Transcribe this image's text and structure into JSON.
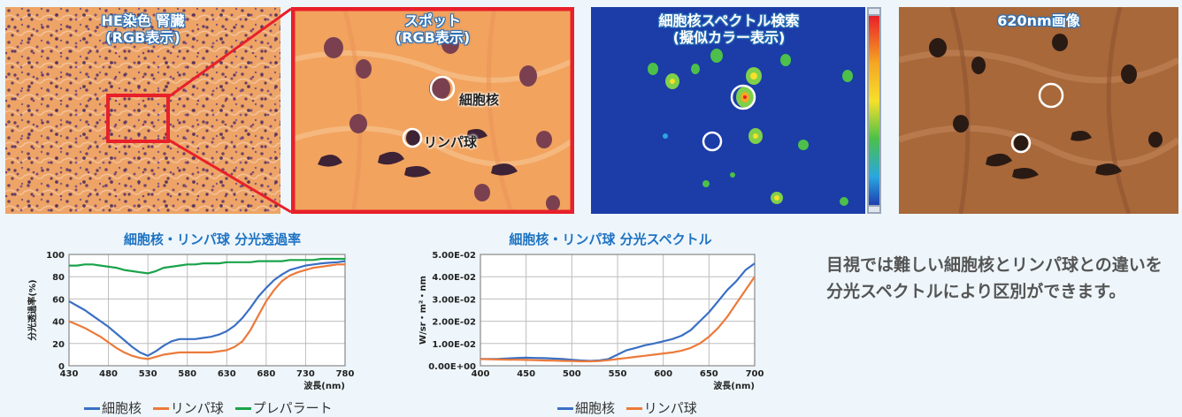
{
  "panels": [
    {
      "title_line1": "HE染色 腎臓",
      "title_line2": "(RGB表示)"
    },
    {
      "title_line1": "スポット",
      "title_line2": "(RGB表示)",
      "annotations": [
        "細胞核",
        "リンパ球"
      ]
    },
    {
      "title_line1": "細胞核スペクトル検索",
      "title_line2": "(擬似カラー表示)"
    },
    {
      "title_line1": "620nm画像",
      "title_line2": ""
    }
  ],
  "description": "目視では難しい細胞核とリンパ球との違いを分光スペクトルにより区別ができます。",
  "colors": {
    "nucleus": "#3a6fc4",
    "lymph": "#ec7a3a",
    "prep": "#1aa34a",
    "accent_red": "#e8202a",
    "title_blue": "#1f73c2"
  },
  "chart_data": [
    {
      "type": "line",
      "title": "細胞核・リンパ球 分光透過率",
      "xlabel": "波長(nm)",
      "ylabel": "分光透過率(%)",
      "xlim": [
        430,
        780
      ],
      "ylim": [
        0,
        100
      ],
      "xticks": [
        430,
        480,
        530,
        580,
        630,
        680,
        730,
        780
      ],
      "yticks": [
        0,
        20,
        40,
        60,
        80,
        100
      ],
      "grid": true,
      "legend_position": "bottom",
      "series": [
        {
          "name": "細胞核",
          "color": "#3a6fc4",
          "x": [
            430,
            440,
            450,
            460,
            470,
            480,
            490,
            500,
            510,
            520,
            530,
            540,
            550,
            560,
            570,
            580,
            590,
            600,
            610,
            620,
            630,
            640,
            650,
            660,
            670,
            680,
            690,
            700,
            710,
            720,
            730,
            740,
            750,
            760,
            770,
            780
          ],
          "y": [
            58,
            54,
            50,
            45,
            40,
            35,
            29,
            23,
            17,
            12,
            9,
            13,
            18,
            22,
            24,
            24,
            24,
            25,
            26,
            28,
            31,
            36,
            43,
            52,
            62,
            70,
            77,
            82,
            86,
            88,
            90,
            91,
            92,
            92.5,
            93,
            94
          ]
        },
        {
          "name": "リンパ球",
          "color": "#ec7a3a",
          "x": [
            430,
            440,
            450,
            460,
            470,
            480,
            490,
            500,
            510,
            520,
            530,
            540,
            550,
            560,
            570,
            580,
            590,
            600,
            610,
            620,
            630,
            640,
            650,
            660,
            670,
            680,
            690,
            700,
            710,
            720,
            730,
            740,
            750,
            760,
            770,
            780
          ],
          "y": [
            40,
            37,
            34,
            30,
            26,
            21,
            16,
            12,
            9,
            7,
            6,
            8,
            10,
            11,
            12,
            12,
            12,
            12,
            12,
            13,
            14,
            17,
            22,
            32,
            45,
            58,
            68,
            76,
            81,
            84,
            86,
            88,
            89,
            90,
            91,
            91
          ]
        },
        {
          "name": "プレパラート",
          "color": "#1aa34a",
          "x": [
            430,
            440,
            450,
            460,
            470,
            480,
            490,
            500,
            510,
            520,
            530,
            540,
            550,
            560,
            570,
            580,
            590,
            600,
            610,
            620,
            630,
            640,
            650,
            660,
            670,
            680,
            690,
            700,
            710,
            720,
            730,
            740,
            750,
            760,
            770,
            780
          ],
          "y": [
            90,
            90,
            91,
            91,
            90,
            89,
            88,
            86,
            85,
            84,
            83,
            85,
            88,
            89,
            90,
            91,
            91,
            92,
            92,
            92,
            93,
            93,
            93,
            93,
            94,
            94,
            94,
            94,
            95,
            95,
            95,
            95,
            96,
            96,
            96,
            96
          ]
        }
      ]
    },
    {
      "type": "line",
      "title": "細胞核・リンパ球 分光スペクトル",
      "xlabel": "波長(nm)",
      "ylabel": "W/sr・m²・nm",
      "xlim": [
        400,
        700
      ],
      "ylim": [
        0,
        0.05
      ],
      "xticks": [
        400,
        450,
        500,
        550,
        600,
        650,
        700
      ],
      "yticks": [
        0,
        0.01,
        0.02,
        0.03,
        0.04,
        0.05
      ],
      "ytick_labels": [
        "0.00E+00",
        "1.00E-02",
        "2.00E-02",
        "3.00E-02",
        "4.00E-02",
        "5.00E-02"
      ],
      "grid": true,
      "legend_position": "bottom",
      "series": [
        {
          "name": "細胞核",
          "color": "#3a6fc4",
          "x": [
            400,
            410,
            420,
            430,
            440,
            450,
            460,
            470,
            480,
            490,
            500,
            510,
            520,
            530,
            540,
            550,
            560,
            570,
            580,
            590,
            600,
            610,
            620,
            630,
            640,
            650,
            660,
            670,
            680,
            690,
            700
          ],
          "y": [
            0.003,
            0.003,
            0.0031,
            0.0033,
            0.0035,
            0.0036,
            0.0035,
            0.0034,
            0.0032,
            0.003,
            0.0027,
            0.0024,
            0.0022,
            0.0024,
            0.003,
            0.005,
            0.007,
            0.008,
            0.0092,
            0.01,
            0.011,
            0.012,
            0.0135,
            0.016,
            0.02,
            0.024,
            0.029,
            0.034,
            0.038,
            0.043,
            0.046
          ]
        },
        {
          "name": "リンパ球",
          "color": "#ec7a3a",
          "x": [
            400,
            410,
            420,
            430,
            440,
            450,
            460,
            470,
            480,
            490,
            500,
            510,
            520,
            530,
            540,
            550,
            560,
            570,
            580,
            590,
            600,
            610,
            620,
            630,
            640,
            650,
            660,
            670,
            680,
            690,
            700
          ],
          "y": [
            0.003,
            0.0029,
            0.0028,
            0.0027,
            0.0027,
            0.0026,
            0.0025,
            0.0024,
            0.0023,
            0.0022,
            0.0021,
            0.002,
            0.002,
            0.0021,
            0.0025,
            0.003,
            0.0035,
            0.004,
            0.0045,
            0.005,
            0.0055,
            0.006,
            0.0068,
            0.008,
            0.01,
            0.013,
            0.017,
            0.022,
            0.028,
            0.034,
            0.04
          ]
        }
      ]
    }
  ]
}
